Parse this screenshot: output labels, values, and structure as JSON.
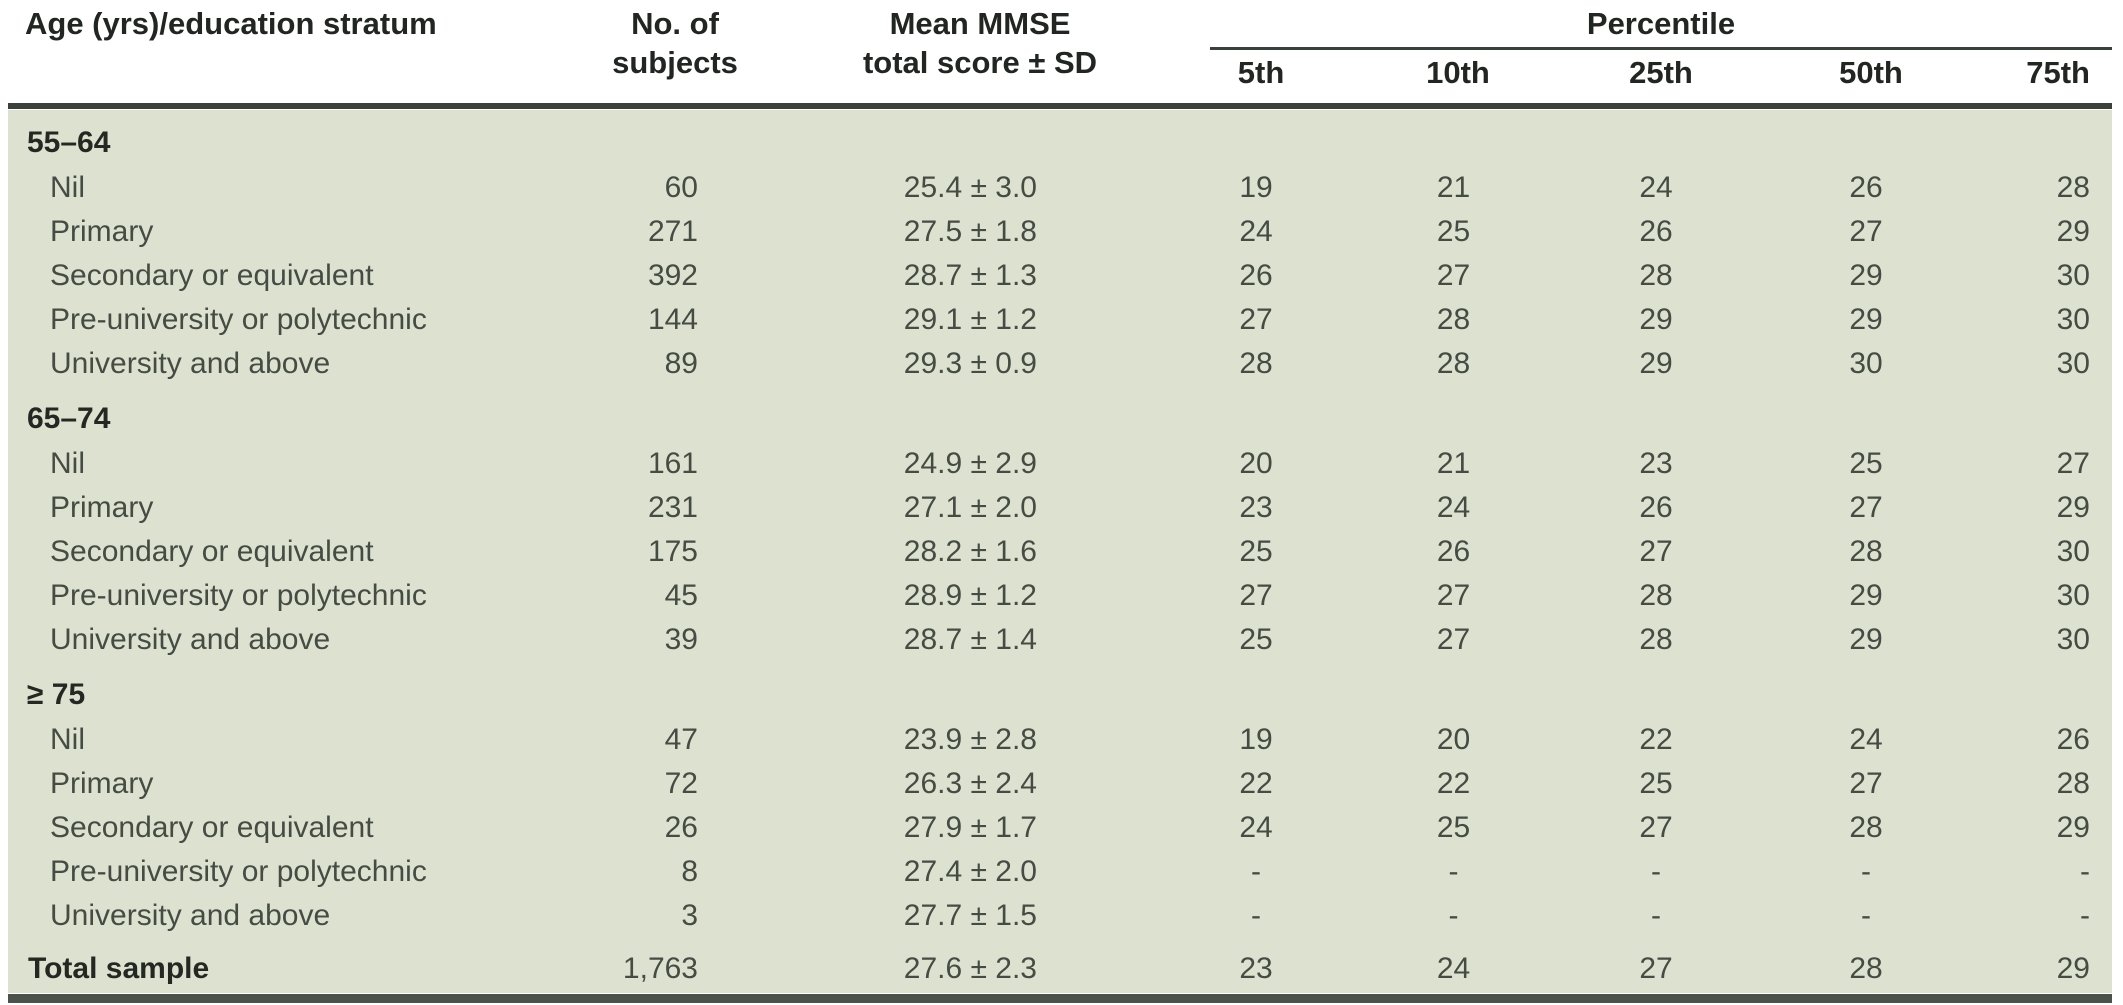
{
  "table": {
    "header": {
      "stratum": "Age (yrs)/education stratum",
      "subjects": [
        "No. of",
        "subjects"
      ],
      "mean": [
        "Mean MMSE",
        "total score ± SD"
      ],
      "percentile_group": "Percentile",
      "percentiles": [
        "5th",
        "10th",
        "25th",
        "50th",
        "75th"
      ]
    },
    "groups": [
      {
        "label": "55–64",
        "rows": [
          {
            "label": "Nil",
            "subjects": "60",
            "mean": "25.4 ± 3.0",
            "percentiles": [
              "19",
              "21",
              "24",
              "26",
              "28"
            ]
          },
          {
            "label": "Primary",
            "subjects": "271",
            "mean": "27.5 ± 1.8",
            "percentiles": [
              "24",
              "25",
              "26",
              "27",
              "29"
            ]
          },
          {
            "label": "Secondary or equivalent",
            "subjects": "392",
            "mean": "28.7 ± 1.3",
            "percentiles": [
              "26",
              "27",
              "28",
              "29",
              "30"
            ]
          },
          {
            "label": "Pre-university or polytechnic",
            "subjects": "144",
            "mean": "29.1 ± 1.2",
            "percentiles": [
              "27",
              "28",
              "29",
              "29",
              "30"
            ]
          },
          {
            "label": "University and above",
            "subjects": "89",
            "mean": "29.3 ± 0.9",
            "percentiles": [
              "28",
              "28",
              "29",
              "30",
              "30"
            ]
          }
        ]
      },
      {
        "label": "65–74",
        "rows": [
          {
            "label": "Nil",
            "subjects": "161",
            "mean": "24.9 ± 2.9",
            "percentiles": [
              "20",
              "21",
              "23",
              "25",
              "27"
            ]
          },
          {
            "label": "Primary",
            "subjects": "231",
            "mean": "27.1 ± 2.0",
            "percentiles": [
              "23",
              "24",
              "26",
              "27",
              "29"
            ]
          },
          {
            "label": "Secondary or equivalent",
            "subjects": "175",
            "mean": "28.2 ± 1.6",
            "percentiles": [
              "25",
              "26",
              "27",
              "28",
              "30"
            ]
          },
          {
            "label": "Pre-university or polytechnic",
            "subjects": "45",
            "mean": "28.9 ± 1.2",
            "percentiles": [
              "27",
              "27",
              "28",
              "29",
              "30"
            ]
          },
          {
            "label": "University and above",
            "subjects": "39",
            "mean": "28.7 ± 1.4",
            "percentiles": [
              "25",
              "27",
              "28",
              "29",
              "30"
            ]
          }
        ]
      },
      {
        "label": "≥ 75",
        "rows": [
          {
            "label": "Nil",
            "subjects": "47",
            "mean": "23.9 ± 2.8",
            "percentiles": [
              "19",
              "20",
              "22",
              "24",
              "26"
            ]
          },
          {
            "label": "Primary",
            "subjects": "72",
            "mean": "26.3 ± 2.4",
            "percentiles": [
              "22",
              "22",
              "25",
              "27",
              "28"
            ]
          },
          {
            "label": "Secondary or equivalent",
            "subjects": "26",
            "mean": "27.9 ± 1.7",
            "percentiles": [
              "24",
              "25",
              "27",
              "28",
              "29"
            ]
          },
          {
            "label": "Pre-university or polytechnic",
            "subjects": "8",
            "mean": "27.4 ± 2.0",
            "percentiles": [
              "-",
              "-",
              "-",
              "-",
              "-"
            ]
          },
          {
            "label": "University and above",
            "subjects": "3",
            "mean": "27.7 ± 1.5",
            "percentiles": [
              "-",
              "-",
              "-",
              "-",
              "-"
            ]
          }
        ]
      }
    ],
    "total": {
      "label": "Total sample",
      "subjects": "1,763",
      "mean": "27.6 ± 2.3",
      "percentiles": [
        "23",
        "24",
        "27",
        "28",
        "29"
      ]
    }
  },
  "colors": {
    "body_background": "#dde2d0",
    "header_rule": "#3a403a",
    "bottom_rule": "#4b514b",
    "header_text": "#212622",
    "body_text": "#454c44"
  }
}
